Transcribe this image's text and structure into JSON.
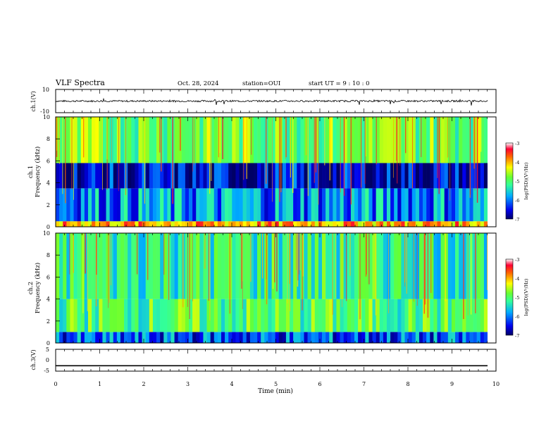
{
  "header": {
    "title": "VLF Spectra",
    "date": "Oct. 28, 2024",
    "station": "station=OUI",
    "start": "start UT =  9 : 10 : 0"
  },
  "colors": {
    "colormap": [
      "#000066",
      "#0000cc",
      "#0066ff",
      "#00ccff",
      "#33ff99",
      "#99ff33",
      "#ffff00",
      "#ff9900",
      "#ff0000",
      "#ff66cc",
      "#ffffff"
    ]
  },
  "chart_data": [
    {
      "type": "line",
      "name": "ch1-waveform",
      "ylabel": "ch.1(V)",
      "ylim": [
        -10,
        10
      ],
      "yticks": [
        "10",
        "-10"
      ],
      "xlim": [
        0,
        10
      ],
      "baseline": 0,
      "noise_amplitude": 1.5
    },
    {
      "type": "heatmap",
      "name": "ch1-spectrogram",
      "ylabel": "ch.1\nFrequency (kHz)",
      "ylim": [
        0,
        10
      ],
      "yticks": [
        "0",
        "2",
        "4",
        "6",
        "8",
        "10"
      ],
      "xlim": [
        0,
        10
      ],
      "colorbar": {
        "label": "log(PSD)(V²/Hz)",
        "range": [
          -7,
          -3
        ],
        "ticks": [
          "-3",
          "-4",
          "-5",
          "-6",
          "-7"
        ]
      },
      "bands": [
        {
          "f_min": 0.0,
          "f_max": 0.5,
          "level": -3.8
        },
        {
          "f_min": 0.5,
          "f_max": 3.5,
          "level": -5.9
        },
        {
          "f_min": 3.5,
          "f_max": 5.8,
          "level": -6.6
        },
        {
          "f_min": 5.8,
          "f_max": 10.0,
          "level": -4.8
        }
      ]
    },
    {
      "type": "heatmap",
      "name": "ch2-spectrogram",
      "ylabel": "ch.2\nFrequency (kHz)",
      "ylim": [
        0,
        10
      ],
      "yticks": [
        "0",
        "2",
        "4",
        "6",
        "8",
        "10"
      ],
      "xlim": [
        0,
        10
      ],
      "colorbar": {
        "label": "log(PSD)(V²/Hz)",
        "range": [
          -7,
          -3
        ],
        "ticks": [
          "-3",
          "-4",
          "-5",
          "-6",
          "-7"
        ]
      },
      "bands": [
        {
          "f_min": 0.0,
          "f_max": 1.0,
          "level": -6.2
        },
        {
          "f_min": 1.0,
          "f_max": 4.0,
          "level": -5.0
        },
        {
          "f_min": 4.0,
          "f_max": 10.0,
          "level": -5.2
        }
      ]
    },
    {
      "type": "line",
      "name": "ch3-waveform",
      "ylabel": "ch.3(V)",
      "ylim": [
        -5,
        5
      ],
      "yticks": [
        "5",
        "0",
        "-5"
      ],
      "xlim": [
        0,
        10
      ],
      "x_ticks": [
        "0",
        "1",
        "2",
        "3",
        "4",
        "5",
        "6",
        "7",
        "8",
        "9",
        "10"
      ],
      "xlabel": "Time (min)",
      "baseline": -2.5
    }
  ]
}
